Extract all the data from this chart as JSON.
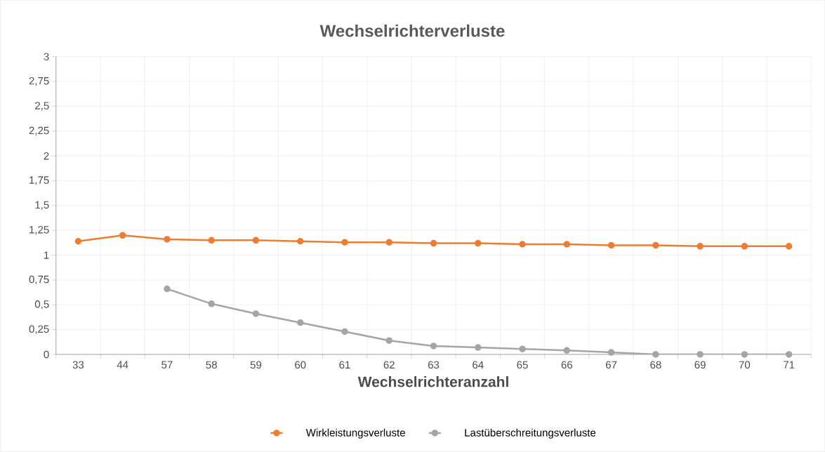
{
  "chart_data": {
    "type": "line",
    "title": "Wechselrichterverluste",
    "xlabel": "Wechselrichteranzahl",
    "categories": [
      "33",
      "44",
      "57",
      "58",
      "59",
      "60",
      "61",
      "62",
      "63",
      "64",
      "65",
      "66",
      "67",
      "68",
      "69",
      "70",
      "71"
    ],
    "series": [
      {
        "name": "Wirkleistungsverluste",
        "color": "#ed7d31",
        "values": [
          1.14,
          1.2,
          1.16,
          1.15,
          1.15,
          1.14,
          1.13,
          1.13,
          1.12,
          1.12,
          1.11,
          1.11,
          1.1,
          1.1,
          1.09,
          1.09,
          1.09
        ]
      },
      {
        "name": "Lastüberschreitungsverluste",
        "color": "#a5a5a5",
        "values": [
          null,
          null,
          0.66,
          0.51,
          0.41,
          0.32,
          0.23,
          0.14,
          0.085,
          0.07,
          0.055,
          0.04,
          0.02,
          0,
          0,
          0,
          0
        ]
      }
    ],
    "ylim": [
      0,
      3
    ],
    "yticks": [
      0,
      {
        "value": 0.25,
        "label": "0,25"
      },
      {
        "value": 0.5,
        "label": "0,5"
      },
      {
        "value": 0.75,
        "label": "0,75"
      },
      1,
      {
        "value": 1.25,
        "label": "1,25"
      },
      {
        "value": 1.5,
        "label": "1,5"
      },
      {
        "value": 1.75,
        "label": "1,75"
      },
      2,
      {
        "value": 2.25,
        "label": "2,25"
      },
      {
        "value": 2.5,
        "label": "2,5"
      },
      {
        "value": 2.75,
        "label": "2,75"
      },
      3
    ],
    "grid": true,
    "legend": "bottom",
    "marker": "circle",
    "line_style": "solid"
  }
}
